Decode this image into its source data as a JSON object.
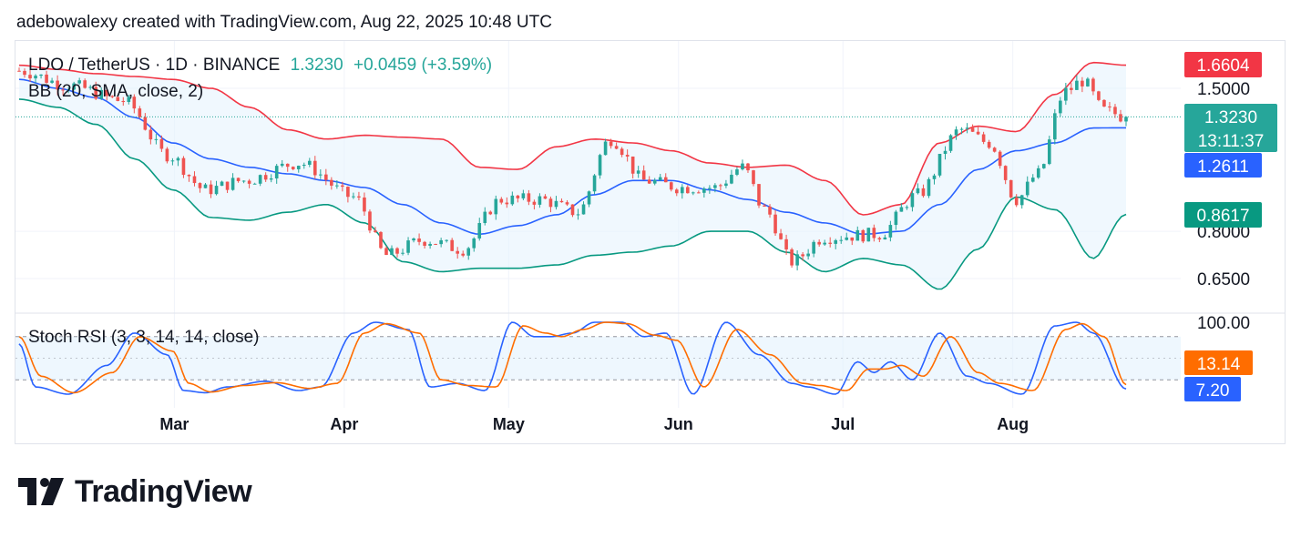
{
  "header": {
    "text": "adebowalexy created with TradingView.com, Aug 22, 2025 10:48 UTC"
  },
  "legend": {
    "symbol": "LDO / TetherUS · 1D · BINANCE",
    "price": "1.3230",
    "change": "+0.0459 (+3.59%)",
    "bb_label": "BB (20, SMA, close, 2)",
    "stoch_label": "Stoch RSI (3, 3, 14, 14, close)"
  },
  "price_axis": {
    "labels": [
      "1.5000",
      "0.8000",
      "0.6500"
    ],
    "badges": {
      "upper": "1.6604",
      "last_price": "1.3230",
      "countdown": "13:11:37",
      "basis": "1.2611",
      "lower": "0.8617"
    }
  },
  "stoch_axis": {
    "labels": [
      "100.00"
    ],
    "badges": {
      "d": "13.14",
      "k": "7.20"
    }
  },
  "time_axis": {
    "labels": [
      "Mar",
      "Apr",
      "May",
      "Jun",
      "Jul",
      "Aug"
    ]
  },
  "colors": {
    "up": "#26a69a",
    "down": "#ef5350",
    "basis": "#2962ff",
    "upper": "#f23645",
    "lower": "#089981",
    "stoch_k": "#2962ff",
    "stoch_d": "#ff6d00",
    "band_fill": "#e3f2fd",
    "grid": "#f0f3fa"
  },
  "logo": {
    "text": "TradingView"
  },
  "chart_data": [
    {
      "type": "candlestick",
      "title": "LDO / TetherUS · 1D · BINANCE",
      "x_range": [
        "2025-02-01",
        "2025-08-22"
      ],
      "ylim": [
        0.56,
        1.75
      ],
      "y_scale": "log",
      "x_ticks": [
        "Mar",
        "Apr",
        "May",
        "Jun",
        "Jul",
        "Aug"
      ],
      "y_ticks": [
        1.5,
        0.8,
        0.65
      ],
      "grid": true,
      "bollinger_anchors": [
        {
          "date": "2025-02-01",
          "upper": 1.66,
          "basis": 1.56,
          "lower": 1.43
        },
        {
          "date": "2025-02-08",
          "upper": 1.63,
          "basis": 1.5,
          "lower": 1.38
        },
        {
          "date": "2025-02-15",
          "upper": 1.6,
          "basis": 1.44,
          "lower": 1.28
        },
        {
          "date": "2025-02-22",
          "upper": 1.58,
          "basis": 1.32,
          "lower": 1.1
        },
        {
          "date": "2025-03-01",
          "upper": 1.56,
          "basis": 1.18,
          "lower": 0.96
        },
        {
          "date": "2025-03-08",
          "upper": 1.5,
          "basis": 1.1,
          "lower": 0.85
        },
        {
          "date": "2025-03-15",
          "upper": 1.38,
          "basis": 1.06,
          "lower": 0.84
        },
        {
          "date": "2025-03-22",
          "upper": 1.25,
          "basis": 1.03,
          "lower": 0.87
        },
        {
          "date": "2025-03-29",
          "upper": 1.2,
          "basis": 1.0,
          "lower": 0.9
        },
        {
          "date": "2025-04-05",
          "upper": 1.22,
          "basis": 0.97,
          "lower": 0.83
        },
        {
          "date": "2025-04-12",
          "upper": 1.21,
          "basis": 0.9,
          "lower": 0.7
        },
        {
          "date": "2025-04-19",
          "upper": 1.2,
          "basis": 0.83,
          "lower": 0.67
        },
        {
          "date": "2025-04-26",
          "upper": 1.06,
          "basis": 0.79,
          "lower": 0.68
        },
        {
          "date": "2025-05-03",
          "upper": 1.05,
          "basis": 0.82,
          "lower": 0.68
        },
        {
          "date": "2025-05-10",
          "upper": 1.16,
          "basis": 0.86,
          "lower": 0.69
        },
        {
          "date": "2025-05-17",
          "upper": 1.2,
          "basis": 0.94,
          "lower": 0.72
        },
        {
          "date": "2025-05-24",
          "upper": 1.18,
          "basis": 1.0,
          "lower": 0.73
        },
        {
          "date": "2025-05-31",
          "upper": 1.14,
          "basis": 1.0,
          "lower": 0.75
        },
        {
          "date": "2025-06-07",
          "upper": 1.08,
          "basis": 0.96,
          "lower": 0.8
        },
        {
          "date": "2025-06-14",
          "upper": 1.06,
          "basis": 0.92,
          "lower": 0.8
        },
        {
          "date": "2025-06-21",
          "upper": 1.07,
          "basis": 0.87,
          "lower": 0.73
        },
        {
          "date": "2025-06-28",
          "upper": 1.0,
          "basis": 0.83,
          "lower": 0.67
        },
        {
          "date": "2025-07-05",
          "upper": 0.86,
          "basis": 0.79,
          "lower": 0.71
        },
        {
          "date": "2025-07-12",
          "upper": 0.9,
          "basis": 0.8,
          "lower": 0.69
        },
        {
          "date": "2025-07-19",
          "upper": 1.18,
          "basis": 0.9,
          "lower": 0.62
        },
        {
          "date": "2025-07-26",
          "upper": 1.27,
          "basis": 1.05,
          "lower": 0.74
        },
        {
          "date": "2025-08-02",
          "upper": 1.24,
          "basis": 1.14,
          "lower": 0.93
        },
        {
          "date": "2025-08-09",
          "upper": 1.46,
          "basis": 1.18,
          "lower": 0.88
        },
        {
          "date": "2025-08-16",
          "upper": 1.68,
          "basis": 1.26,
          "lower": 0.71
        },
        {
          "date": "2025-08-22",
          "upper": 1.6604,
          "basis": 1.2611,
          "lower": 0.8617
        }
      ],
      "close_anchors": [
        {
          "date": "2025-02-01",
          "close": 1.62
        },
        {
          "date": "2025-02-10",
          "close": 1.52
        },
        {
          "date": "2025-02-20",
          "close": 1.42
        },
        {
          "date": "2025-02-28",
          "close": 1.12
        },
        {
          "date": "2025-03-07",
          "close": 0.96
        },
        {
          "date": "2025-03-14",
          "close": 1.0
        },
        {
          "date": "2025-03-24",
          "close": 1.08
        },
        {
          "date": "2025-04-03",
          "close": 0.93
        },
        {
          "date": "2025-04-09",
          "close": 0.72
        },
        {
          "date": "2025-04-16",
          "close": 0.77
        },
        {
          "date": "2025-04-23",
          "close": 0.74
        },
        {
          "date": "2025-04-30",
          "close": 0.92
        },
        {
          "date": "2025-05-07",
          "close": 0.92
        },
        {
          "date": "2025-05-14",
          "close": 0.87
        },
        {
          "date": "2025-05-20",
          "close": 1.2
        },
        {
          "date": "2025-05-26",
          "close": 1.0
        },
        {
          "date": "2025-06-02",
          "close": 0.97
        },
        {
          "date": "2025-06-08",
          "close": 0.97
        },
        {
          "date": "2025-06-13",
          "close": 1.06
        },
        {
          "date": "2025-06-17",
          "close": 0.88
        },
        {
          "date": "2025-06-22",
          "close": 0.7
        },
        {
          "date": "2025-06-28",
          "close": 0.78
        },
        {
          "date": "2025-07-08",
          "close": 0.79
        },
        {
          "date": "2025-07-15",
          "close": 0.94
        },
        {
          "date": "2025-07-23",
          "close": 1.25
        },
        {
          "date": "2025-07-28",
          "close": 1.18
        },
        {
          "date": "2025-08-02",
          "close": 0.92
        },
        {
          "date": "2025-08-06",
          "close": 1.03
        },
        {
          "date": "2025-08-11",
          "close": 1.48
        },
        {
          "date": "2025-08-14",
          "close": 1.55
        },
        {
          "date": "2025-08-18",
          "close": 1.36
        },
        {
          "date": "2025-08-22",
          "close": 1.323
        }
      ]
    },
    {
      "type": "line",
      "title": "Stoch RSI (3, 3, 14, 14, close)",
      "ylim": [
        0,
        100
      ],
      "bands": [
        80,
        50,
        20
      ],
      "series": [
        {
          "name": "K",
          "values": [
            {
              "date": "2025-02-01",
              "value": 70
            },
            {
              "date": "2025-02-04",
              "value": 10
            },
            {
              "date": "2025-02-10",
              "value": 0
            },
            {
              "date": "2025-02-17",
              "value": 40
            },
            {
              "date": "2025-02-22",
              "value": 85
            },
            {
              "date": "2025-02-28",
              "value": 55
            },
            {
              "date": "2025-03-03",
              "value": 5
            },
            {
              "date": "2025-03-07",
              "value": 2
            },
            {
              "date": "2025-03-11",
              "value": 10
            },
            {
              "date": "2025-03-18",
              "value": 18
            },
            {
              "date": "2025-03-24",
              "value": 5
            },
            {
              "date": "2025-03-28",
              "value": 10
            },
            {
              "date": "2025-04-03",
              "value": 85
            },
            {
              "date": "2025-04-07",
              "value": 100
            },
            {
              "date": "2025-04-13",
              "value": 90
            },
            {
              "date": "2025-04-17",
              "value": 10
            },
            {
              "date": "2025-04-22",
              "value": 15
            },
            {
              "date": "2025-04-27",
              "value": 5
            },
            {
              "date": "2025-05-02",
              "value": 100
            },
            {
              "date": "2025-05-06",
              "value": 80
            },
            {
              "date": "2025-05-09",
              "value": 80
            },
            {
              "date": "2025-05-13",
              "value": 85
            },
            {
              "date": "2025-05-17",
              "value": 100
            },
            {
              "date": "2025-05-22",
              "value": 100
            },
            {
              "date": "2025-05-26",
              "value": 80
            },
            {
              "date": "2025-05-30",
              "value": 85
            },
            {
              "date": "2025-06-04",
              "value": 0
            },
            {
              "date": "2025-06-10",
              "value": 100
            },
            {
              "date": "2025-06-16",
              "value": 55
            },
            {
              "date": "2025-06-22",
              "value": 15
            },
            {
              "date": "2025-06-25",
              "value": 10
            },
            {
              "date": "2025-06-30",
              "value": 0
            },
            {
              "date": "2025-07-04",
              "value": 45
            },
            {
              "date": "2025-07-07",
              "value": 30
            },
            {
              "date": "2025-07-10",
              "value": 45
            },
            {
              "date": "2025-07-14",
              "value": 20
            },
            {
              "date": "2025-07-19",
              "value": 85
            },
            {
              "date": "2025-07-24",
              "value": 25
            },
            {
              "date": "2025-07-28",
              "value": 15
            },
            {
              "date": "2025-08-03",
              "value": 0
            },
            {
              "date": "2025-08-09",
              "value": 95
            },
            {
              "date": "2025-08-13",
              "value": 100
            },
            {
              "date": "2025-08-16",
              "value": 85
            },
            {
              "date": "2025-08-22",
              "value": 7.2
            }
          ]
        },
        {
          "name": "D",
          "values": [
            {
              "date": "2025-02-01",
              "value": 80
            },
            {
              "date": "2025-02-05",
              "value": 25
            },
            {
              "date": "2025-02-11",
              "value": 2
            },
            {
              "date": "2025-02-18",
              "value": 30
            },
            {
              "date": "2025-02-23",
              "value": 80
            },
            {
              "date": "2025-03-01",
              "value": 60
            },
            {
              "date": "2025-03-04",
              "value": 15
            },
            {
              "date": "2025-03-08",
              "value": 3
            },
            {
              "date": "2025-03-14",
              "value": 12
            },
            {
              "date": "2025-03-20",
              "value": 16
            },
            {
              "date": "2025-03-26",
              "value": 8
            },
            {
              "date": "2025-03-31",
              "value": 15
            },
            {
              "date": "2025-04-05",
              "value": 85
            },
            {
              "date": "2025-04-09",
              "value": 98
            },
            {
              "date": "2025-04-15",
              "value": 85
            },
            {
              "date": "2025-04-19",
              "value": 20
            },
            {
              "date": "2025-04-24",
              "value": 12
            },
            {
              "date": "2025-04-29",
              "value": 10
            },
            {
              "date": "2025-05-04",
              "value": 95
            },
            {
              "date": "2025-05-08",
              "value": 85
            },
            {
              "date": "2025-05-11",
              "value": 80
            },
            {
              "date": "2025-05-15",
              "value": 90
            },
            {
              "date": "2025-05-19",
              "value": 100
            },
            {
              "date": "2025-05-23",
              "value": 98
            },
            {
              "date": "2025-05-28",
              "value": 82
            },
            {
              "date": "2025-06-01",
              "value": 75
            },
            {
              "date": "2025-06-06",
              "value": 10
            },
            {
              "date": "2025-06-12",
              "value": 90
            },
            {
              "date": "2025-06-18",
              "value": 55
            },
            {
              "date": "2025-06-24",
              "value": 15
            },
            {
              "date": "2025-06-27",
              "value": 12
            },
            {
              "date": "2025-07-02",
              "value": 5
            },
            {
              "date": "2025-07-06",
              "value": 35
            },
            {
              "date": "2025-07-09",
              "value": 35
            },
            {
              "date": "2025-07-12",
              "value": 40
            },
            {
              "date": "2025-07-16",
              "value": 25
            },
            {
              "date": "2025-07-21",
              "value": 80
            },
            {
              "date": "2025-07-26",
              "value": 30
            },
            {
              "date": "2025-07-30",
              "value": 15
            },
            {
              "date": "2025-08-05",
              "value": 5
            },
            {
              "date": "2025-08-11",
              "value": 90
            },
            {
              "date": "2025-08-14",
              "value": 98
            },
            {
              "date": "2025-08-18",
              "value": 80
            },
            {
              "date": "2025-08-22",
              "value": 13.14
            }
          ]
        }
      ]
    }
  ]
}
